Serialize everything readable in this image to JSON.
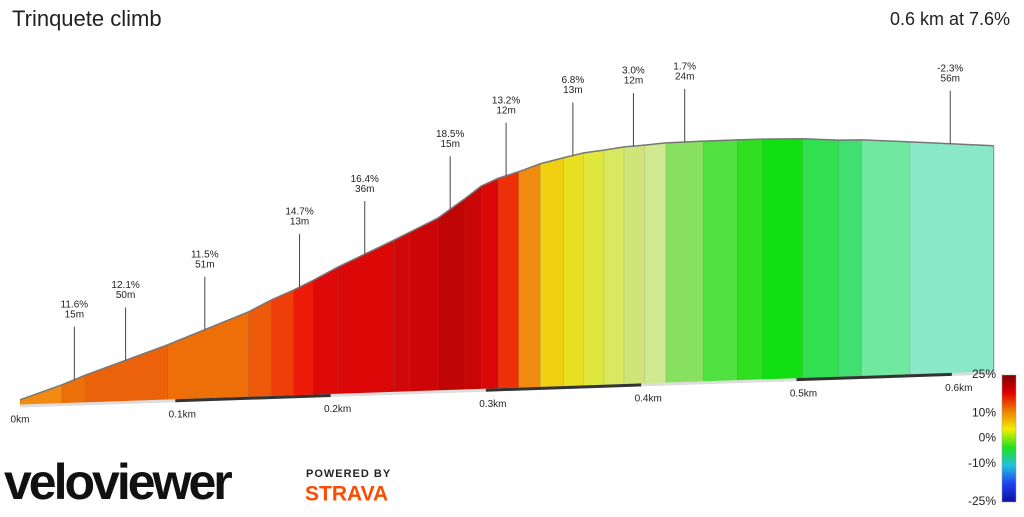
{
  "chart_data": {
    "type": "elevation-profile",
    "title": "Trinquete climb",
    "summary": "0.6 km at 7.6%",
    "x": [
      0,
      0.027,
      0.042,
      0.095,
      0.147,
      0.162,
      0.176,
      0.189,
      0.205,
      0.241,
      0.251,
      0.269,
      0.287,
      0.297,
      0.308,
      0.321,
      0.335,
      0.35,
      0.363,
      0.376,
      0.389,
      0.402,
      0.416,
      0.44,
      0.462,
      0.478,
      0.504,
      0.527,
      0.542,
      0.573,
      0.627
    ],
    "elevation": [
      1.0,
      3.6,
      5.3,
      10.6,
      16.4,
      18.6,
      20.3,
      22.1,
      24.5,
      29.3,
      30.7,
      33.2,
      36.9,
      39.1,
      40.5,
      41.6,
      43.0,
      44.0,
      44.8,
      45.2,
      45.7,
      45.9,
      46.2,
      46.3,
      46.3,
      46.3,
      46.1,
      45.6,
      45.5,
      44.8,
      43.5
    ],
    "colors": [
      "#f08a10",
      "#ec700a",
      "#ec620a",
      "#ee6e08",
      "#ec5a0a",
      "#ee3e0a",
      "#ee1a0a",
      "#de0a0a",
      "#dc0808",
      "#d00808",
      "#cc0606",
      "#c00505",
      "#c80606",
      "#dc0808",
      "#ee3008",
      "#f08a10",
      "#f0d010",
      "#e8e020",
      "#e0e840",
      "#d8e860",
      "#d0e478",
      "#d0e890",
      "#88e060",
      "#50e040",
      "#30e020",
      "#10e010",
      "#30e050",
      "#40e070",
      "#70e8a0",
      "#88e8c8"
    ],
    "annotations": {
      "x": [
        0.035,
        0.068,
        0.119,
        0.18,
        0.222,
        0.277,
        0.313,
        0.356,
        0.395,
        0.428,
        0.599
      ],
      "grades": [
        11.6,
        12.1,
        11.5,
        14.7,
        16.4,
        18.5,
        13.2,
        6.8,
        3.0,
        1.7,
        -2.3
      ],
      "grade_labels": [
        "11.6%",
        "12.1%",
        "11.5%",
        "14.7%",
        "16.4%",
        "18.5%",
        "13.2%",
        "6.8%",
        "3.0%",
        "1.7%",
        "-2.3%"
      ],
      "lengths": [
        15,
        50,
        51,
        13,
        36,
        15,
        12,
        13,
        12,
        24,
        56
      ],
      "length_labels": [
        "15m",
        "50m",
        "51m",
        "13m",
        "36m",
        "15m",
        "12m",
        "13m",
        "12m",
        "24m",
        "56m"
      ]
    },
    "xlim": [
      0,
      0.627
    ],
    "xticks": [
      {
        "value": 0,
        "label": "0km"
      },
      {
        "value": 0.1,
        "label": "0.1km"
      },
      {
        "value": 0.2,
        "label": "0.2km"
      },
      {
        "value": 0.3,
        "label": "0.3km"
      },
      {
        "value": 0.4,
        "label": "0.4km"
      },
      {
        "value": 0.5,
        "label": "0.5km"
      },
      {
        "value": 0.6,
        "label": "0.6km"
      }
    ],
    "colorbar": {
      "lim": [
        -25,
        25
      ],
      "ticks": [
        {
          "value": 25,
          "label": "25%"
        },
        {
          "value": 10,
          "label": "10%"
        },
        {
          "value": 0,
          "label": "0%"
        },
        {
          "value": -10,
          "label": "-10%"
        },
        {
          "value": -25,
          "label": "-25%"
        }
      ],
      "colors": [
        "#1010a0",
        "#2040f0",
        "#20c0e0",
        "#20e020",
        "#f0f000",
        "#f08000",
        "#e00000",
        "#800000"
      ]
    }
  },
  "branding": {
    "logo": "veloviewer",
    "powered": "POWERED BY",
    "strava": "STRAVA"
  }
}
